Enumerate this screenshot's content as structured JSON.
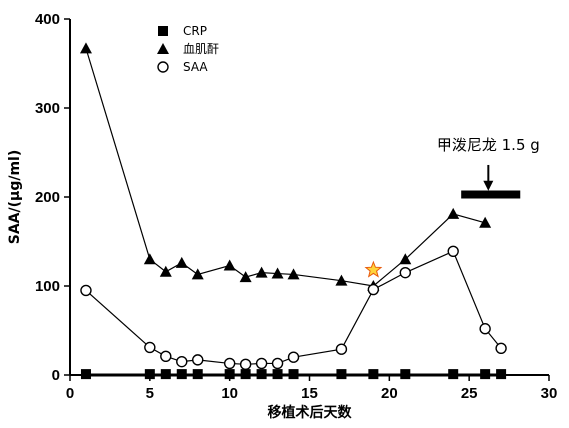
{
  "chart_data": {
    "type": "line",
    "xlabel": "移植术后天数",
    "ylabel": "SAA/(μg/ml)",
    "xlim": [
      0,
      30
    ],
    "ylim": [
      0,
      400
    ],
    "xticks": [
      0,
      5,
      10,
      15,
      20,
      25,
      30
    ],
    "yticks": [
      0,
      100,
      200,
      300,
      400
    ],
    "grid": false,
    "legend_position": "top-left",
    "series": [
      {
        "name": "CRP",
        "marker": "filled-square",
        "line": false,
        "x": [
          1,
          5,
          6,
          7,
          8,
          10,
          11,
          12,
          13,
          14,
          17,
          19,
          21,
          24,
          26,
          27
        ],
        "y": [
          1,
          1,
          1,
          1,
          1,
          1,
          1,
          1,
          1,
          1,
          1,
          1,
          1,
          1,
          1,
          1
        ]
      },
      {
        "name": "血肌酐",
        "marker": "filled-triangle",
        "line": true,
        "x": [
          1,
          5,
          6,
          7,
          8,
          10,
          11,
          12,
          13,
          14,
          17,
          19,
          21,
          24,
          26
        ],
        "y": [
          367,
          130,
          116,
          126,
          113,
          123,
          110,
          115,
          114,
          113,
          106,
          100,
          130,
          181,
          171
        ]
      },
      {
        "name": "SAA",
        "marker": "open-circle",
        "line": true,
        "x": [
          1,
          5,
          6,
          7,
          8,
          10,
          11,
          12,
          13,
          14,
          17,
          19,
          21,
          24,
          26,
          27
        ],
        "y": [
          95,
          31,
          21,
          15,
          17,
          13,
          12,
          13,
          13,
          20,
          29,
          96,
          115,
          139,
          52,
          30
        ]
      }
    ],
    "annotations": [
      {
        "kind": "star",
        "x": 19,
        "y": 118,
        "color": "#ffd43b"
      },
      {
        "kind": "label",
        "text": "甲泼尼龙 1.5 g",
        "x": 26.2,
        "y": 253
      },
      {
        "kind": "arrow",
        "x": 26.2,
        "y_from": 236,
        "y_to": 207
      },
      {
        "kind": "bar",
        "x_from": 24.5,
        "x_to": 28.2,
        "y": 205
      }
    ]
  }
}
